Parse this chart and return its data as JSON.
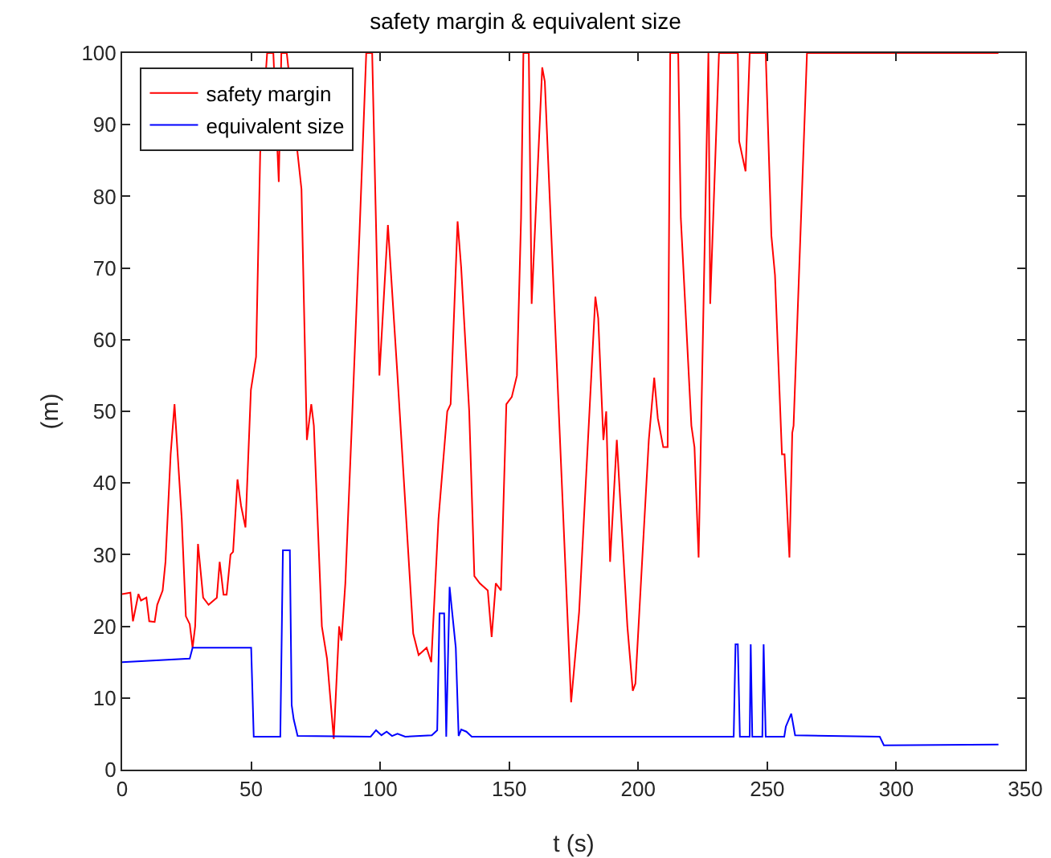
{
  "chart_data": {
    "type": "line",
    "title": "safety margin & equivalent size",
    "xlabel": "t (s)",
    "ylabel": "(m)",
    "xlim": [
      0,
      350
    ],
    "xticks": [
      0,
      50,
      100,
      150,
      200,
      250,
      300,
      350
    ],
    "ylim": [
      0,
      100
    ],
    "yticks": [
      0,
      10,
      20,
      30,
      40,
      50,
      60,
      70,
      80,
      90,
      100
    ],
    "grid": false,
    "legend": "top left",
    "marker": "none",
    "line_style": "solid",
    "series": [
      {
        "name": "safety margin",
        "color": "#ff0000",
        "x": [
          0,
          3.2,
          4.2,
          6.3,
          7.3,
          9.4,
          10.5,
          12.6,
          13.6,
          15.7,
          16.8,
          18.8,
          20.3,
          23.1,
          24.7,
          26.2,
          27.3,
          28.3,
          29.4,
          31.4,
          33.5,
          36.7,
          37.8,
          39.3,
          40.5,
          42,
          43,
          44.7,
          46.1,
          47.8,
          49.9,
          51.9,
          53.5,
          56.2,
          58.6,
          60.7,
          61.7,
          63.8,
          69.5,
          71.6,
          73.3,
          74.3,
          77.4,
          79.4,
          82,
          84.1,
          85,
          86.5,
          89,
          92,
          94.6,
          96.9,
          99.7,
          103,
          106.7,
          112.8,
          114.9,
          118,
          119.8,
          122.6,
          126,
          127.3,
          130,
          131.4,
          134.5,
          136.5,
          138.6,
          141.7,
          143.2,
          144.8,
          146.8,
          148.9,
          151,
          153,
          154.6,
          155.5,
          157.6,
          158.7,
          162.8,
          163.8,
          174,
          177.1,
          183.4,
          184.5,
          186.5,
          187.6,
          189.1,
          191.7,
          195.8,
          197.9,
          198.9,
          204.1,
          206.2,
          207.6,
          209.7,
          211.4,
          212.4,
          215.5,
          216.5,
          220.6,
          221.8,
          223.4,
          227.2,
          227.9,
          231.3,
          238.6,
          239.1,
          241.6,
          243.2,
          249.4,
          251.6,
          253,
          255.7,
          256.7,
          258.6,
          259.7,
          260.2,
          265.4,
          339.6
        ],
        "values": [
          24.5,
          24.7,
          20.7,
          24.5,
          23.6,
          24,
          20.7,
          20.6,
          23,
          25,
          29,
          44,
          51,
          35,
          21.4,
          20.3,
          17,
          20,
          31.5,
          24,
          23,
          24,
          29,
          24.4,
          24.4,
          30,
          30.4,
          40.5,
          36.8,
          33.8,
          53,
          57.6,
          86,
          100,
          100,
          82,
          100,
          100,
          81,
          46,
          51,
          48,
          20,
          15.5,
          4.3,
          20,
          18,
          26,
          48,
          75,
          100,
          100,
          55,
          76,
          55,
          19,
          16,
          17,
          15,
          35,
          50,
          51,
          76.5,
          70,
          50,
          27,
          26,
          25,
          18.5,
          26,
          25,
          51,
          52,
          55,
          77,
          100,
          100,
          65,
          98,
          96,
          9.4,
          22,
          66,
          63,
          46,
          50,
          29,
          46,
          20,
          11,
          12,
          46,
          54.7,
          49,
          45,
          45,
          100,
          100,
          77,
          48,
          45,
          29.6,
          100,
          65,
          100,
          100,
          87.7,
          83.5,
          100,
          100,
          74.5,
          69,
          44,
          44,
          29.6,
          47,
          48,
          100,
          100
        ]
      },
      {
        "name": "equivalent size",
        "color": "#0000ff",
        "x": [
          0,
          26.2,
          27.3,
          50,
          51,
          61.3,
          62.3,
          65,
          65.7,
          66.5,
          68,
          96.3,
          98.4,
          100.5,
          102.5,
          104.6,
          106.7,
          109.7,
          120,
          122.1,
          123,
          124.8,
          125.6,
          126.9,
          129.3,
          130.4,
          131.4,
          133.4,
          135.5,
          237,
          237.7,
          238.6,
          239.4,
          243.2,
          243.6,
          244.2,
          248.1,
          248.6,
          249.4,
          256.6,
          257.2,
          259.3,
          260.8,
          293.6,
          295.2,
          339.6
        ],
        "values": [
          15,
          15.5,
          17,
          17,
          4.6,
          4.6,
          30.6,
          30.6,
          9,
          7,
          4.7,
          4.6,
          5.5,
          4.8,
          5.3,
          4.7,
          5,
          4.6,
          4.8,
          5.5,
          21.8,
          21.8,
          4.6,
          25.5,
          17,
          4.7,
          5.6,
          5.3,
          4.6,
          4.6,
          17.5,
          17.5,
          4.6,
          4.6,
          17.5,
          4.6,
          4.6,
          17.5,
          4.6,
          4.6,
          6,
          7.8,
          4.8,
          4.6,
          3.4,
          3.5
        ]
      }
    ]
  }
}
